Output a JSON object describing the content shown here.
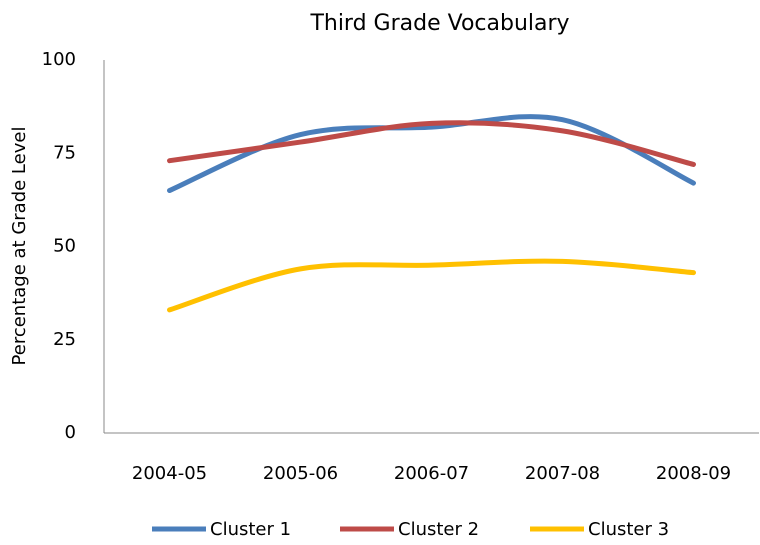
{
  "chart_data": {
    "type": "line",
    "title": "Third Grade Vocabulary",
    "y_label": "Percentage at Grade Level",
    "categories": [
      "2004-05",
      "2005-06",
      "2006-07",
      "2007-08",
      "2008-09"
    ],
    "series": [
      {
        "name": "Cluster 1",
        "color": "#4a7ebb",
        "values": [
          65,
          80,
          82,
          84,
          67
        ]
      },
      {
        "name": "Cluster 2",
        "color": "#be4b48",
        "values": [
          73,
          78,
          83,
          81,
          72
        ]
      },
      {
        "name": "Cluster 3",
        "color": "#ffc000",
        "values": [
          33,
          44,
          45,
          46,
          43
        ]
      }
    ],
    "ylim": [
      0,
      100
    ],
    "yticks": [
      0,
      25,
      50,
      75,
      100
    ],
    "grid": false,
    "smooth": true,
    "legend": "bottom"
  }
}
